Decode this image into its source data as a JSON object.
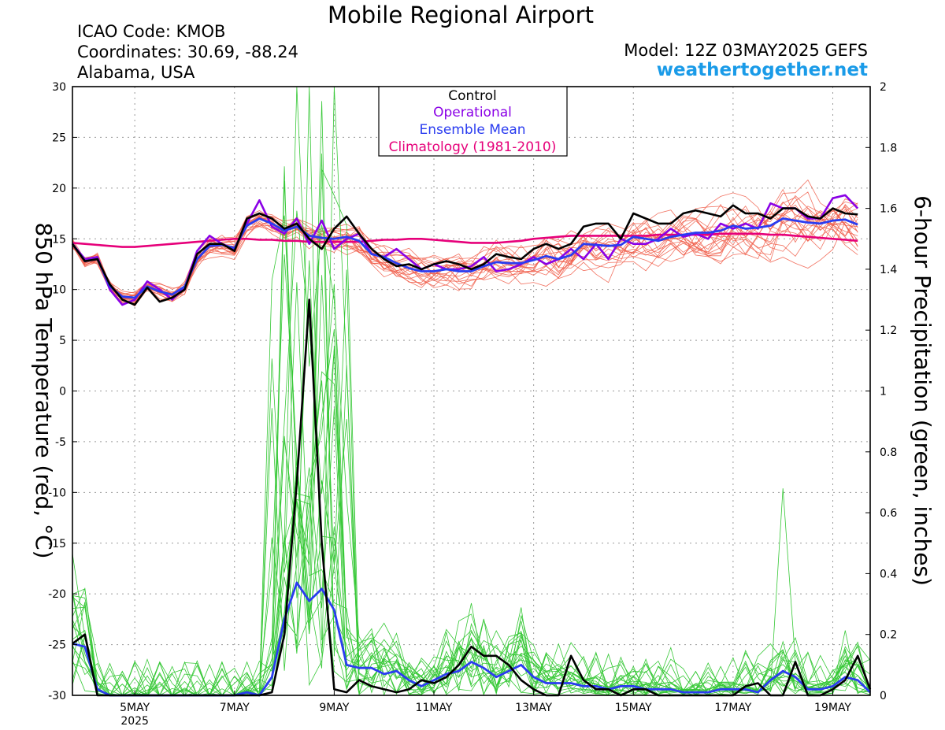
{
  "header": {
    "title": "Mobile Regional Airport",
    "icao": "ICAO Code: KMOB",
    "coordinates": "Coordinates: 30.69, -88.24",
    "region": "Alabama, USA",
    "model": "Model: 12Z 03MAY2025 GEFS",
    "website": "weathertogether.net"
  },
  "colors": {
    "control": "#000000",
    "operational": "#8a00e6",
    "ensemble_mean": "#2a3cf0",
    "climatology": "#e6007a",
    "member_temp": "#f05a46",
    "member_precip": "#36c836",
    "website": "#1a9be8"
  },
  "chart_data": {
    "type": "line",
    "title": "Mobile Regional Airport",
    "xlabel": "",
    "ylabel_left": "850 hPa Temperature (red, °C)",
    "ylabel_right": "6-hour Precipitation (green, inches)",
    "ylim_left": [
      -30,
      30
    ],
    "ylim_right": [
      0,
      2
    ],
    "yticks_left": [
      "30",
      "25",
      "20",
      "15",
      "10",
      "5",
      "0",
      "-5",
      "-10",
      "-15",
      "-20",
      "-25",
      "-30"
    ],
    "yticks_right": [
      "2",
      "1.8",
      "1.6",
      "1.4",
      "1.2",
      "1",
      "0.8",
      "0.6",
      "0.4",
      "0.2",
      "0"
    ],
    "grid": true,
    "x_unit": "6-hourly steps from 03MAY2025 18Z",
    "x_start_label": "03MAY2025 18Z",
    "xticks": [
      {
        "label": "5MAY",
        "sublabel": "2025",
        "step": 5
      },
      {
        "label": "7MAY",
        "sublabel": "",
        "step": 13
      },
      {
        "label": "9MAY",
        "sublabel": "",
        "step": 21
      },
      {
        "label": "11MAY",
        "sublabel": "",
        "step": 29
      },
      {
        "label": "13MAY",
        "sublabel": "",
        "step": 37
      },
      {
        "label": "15MAY",
        "sublabel": "",
        "step": 45
      },
      {
        "label": "17MAY",
        "sublabel": "",
        "step": 53
      },
      {
        "label": "19MAY",
        "sublabel": "",
        "step": 61
      }
    ],
    "legend": {
      "placement": "top-center",
      "entries": [
        "Control",
        "Operational",
        "Ensemble Mean",
        "Climatology (1981-2010)"
      ]
    },
    "series": [
      {
        "name": "Control",
        "axis": "temp",
        "values": [
          14.5,
          12.8,
          13.0,
          10.5,
          9.0,
          8.5,
          10.2,
          8.8,
          9.2,
          10.0,
          13.5,
          14.5,
          14.5,
          13.8,
          17.0,
          17.5,
          17.0,
          16.0,
          16.5,
          15.0,
          14.0,
          16.0,
          17.2,
          15.5,
          14.0,
          13.0,
          12.3,
          12.5,
          12.0,
          12.5,
          12.8,
          12.5,
          12.0,
          12.5,
          13.5,
          13.2,
          13.0,
          14.0,
          14.5,
          14.0,
          14.5,
          16.2,
          16.5,
          16.5,
          15.0,
          17.5,
          17.0,
          16.5,
          16.5,
          17.5,
          17.8,
          17.5,
          17.2,
          18.3,
          17.5,
          17.5,
          17.0,
          18.0,
          18.0,
          17.2,
          17.0,
          18.0,
          17.5,
          17.4
        ]
      },
      {
        "name": "Operational",
        "axis": "temp",
        "values": [
          14.5,
          13.0,
          13.2,
          10.0,
          8.5,
          9.0,
          10.8,
          10.0,
          9.0,
          10.2,
          13.8,
          15.3,
          14.5,
          14.0,
          16.5,
          18.8,
          16.2,
          15.5,
          17.0,
          14.5,
          16.8,
          14.0,
          15.0,
          15.5,
          13.5,
          13.2,
          14.0,
          13.0,
          12.0,
          12.5,
          12.0,
          12.0,
          12.3,
          13.2,
          11.8,
          12.0,
          12.5,
          13.2,
          12.5,
          13.0,
          14.0,
          13.0,
          14.5,
          13.0,
          15.0,
          14.5,
          14.5,
          15.0,
          16.0,
          15.2,
          15.5,
          15.0,
          16.5,
          16.0,
          16.5,
          16.0,
          18.5,
          18.0,
          18.0,
          17.0,
          17.0,
          19.0,
          19.3,
          18.0
        ]
      },
      {
        "name": "Ensemble Mean",
        "axis": "temp",
        "values": [
          14.5,
          12.8,
          13.0,
          10.3,
          9.3,
          9.2,
          10.3,
          9.8,
          9.5,
          10.3,
          13.0,
          14.3,
          14.4,
          14.1,
          16.3,
          17.0,
          16.5,
          15.8,
          16.2,
          15.3,
          15.1,
          15.0,
          15.2,
          14.8,
          13.5,
          13.2,
          12.6,
          12.1,
          11.8,
          11.8,
          12.0,
          11.8,
          11.8,
          12.3,
          12.7,
          12.6,
          12.6,
          12.9,
          13.3,
          13.0,
          13.4,
          14.5,
          14.4,
          14.3,
          14.4,
          15.2,
          15.0,
          14.8,
          15.2,
          15.4,
          15.6,
          15.6,
          15.8,
          16.3,
          16.0,
          16.1,
          16.3,
          17.0,
          16.8,
          16.6,
          16.5,
          16.8,
          16.9,
          16.4
        ]
      },
      {
        "name": "Climatology (1981-2010)",
        "axis": "temp",
        "values": [
          14.6,
          14.5,
          14.4,
          14.3,
          14.2,
          14.2,
          14.3,
          14.4,
          14.5,
          14.6,
          14.7,
          14.8,
          14.9,
          15.0,
          15.0,
          14.9,
          14.9,
          14.8,
          14.8,
          14.7,
          14.7,
          14.7,
          14.7,
          14.7,
          14.8,
          14.9,
          14.9,
          15.0,
          15.0,
          14.9,
          14.8,
          14.7,
          14.6,
          14.6,
          14.6,
          14.7,
          14.8,
          15.0,
          15.1,
          15.2,
          15.3,
          15.3,
          15.3,
          15.3,
          15.3,
          15.3,
          15.3,
          15.4,
          15.4,
          15.4,
          15.4,
          15.4,
          15.5,
          15.5,
          15.5,
          15.5,
          15.4,
          15.4,
          15.3,
          15.2,
          15.1,
          15.0,
          14.9,
          14.8
        ]
      },
      {
        "name": "Control",
        "axis": "precip",
        "values": [
          0.17,
          0.2,
          0.0,
          0.0,
          0.0,
          0.0,
          0.0,
          0.0,
          0.0,
          0.0,
          0.0,
          0.0,
          0.0,
          0.0,
          0.0,
          0.0,
          0.01,
          0.2,
          0.7,
          1.3,
          0.5,
          0.02,
          0.01,
          0.05,
          0.03,
          0.02,
          0.01,
          0.02,
          0.05,
          0.04,
          0.06,
          0.1,
          0.16,
          0.13,
          0.13,
          0.1,
          0.05,
          0.02,
          0.0,
          0.0,
          0.13,
          0.05,
          0.02,
          0.02,
          0.0,
          0.02,
          0.02,
          0.0,
          0.0,
          0.0,
          0.0,
          0.0,
          0.0,
          0.0,
          0.03,
          0.04,
          0.0,
          0.0,
          0.11,
          0.0,
          0.0,
          0.02,
          0.05,
          0.13,
          0.02
        ]
      },
      {
        "name": "Ensemble Mean",
        "axis": "precip",
        "values": [
          0.17,
          0.16,
          0.02,
          0.0,
          0.0,
          0.0,
          0.0,
          0.0,
          0.0,
          0.0,
          0.0,
          0.0,
          0.0,
          0.0,
          0.01,
          0.0,
          0.06,
          0.25,
          0.37,
          0.31,
          0.35,
          0.28,
          0.1,
          0.09,
          0.09,
          0.07,
          0.08,
          0.05,
          0.03,
          0.05,
          0.07,
          0.08,
          0.11,
          0.09,
          0.06,
          0.08,
          0.1,
          0.06,
          0.04,
          0.04,
          0.04,
          0.03,
          0.03,
          0.02,
          0.03,
          0.03,
          0.02,
          0.02,
          0.02,
          0.01,
          0.01,
          0.01,
          0.02,
          0.02,
          0.02,
          0.01,
          0.05,
          0.08,
          0.06,
          0.02,
          0.02,
          0.03,
          0.06,
          0.05,
          0.01
        ]
      }
    ]
  }
}
